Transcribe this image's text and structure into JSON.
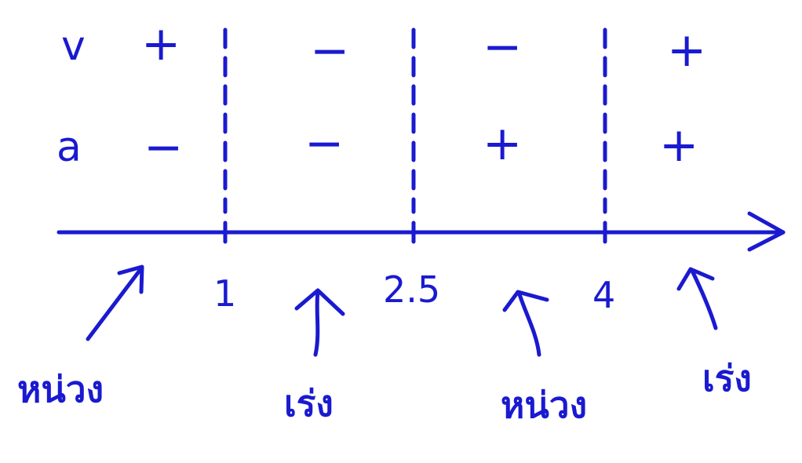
{
  "ink_color": "#1a1ad0",
  "rows": [
    {
      "label": "v",
      "signs": [
        "+",
        "−",
        "−",
        "+"
      ]
    },
    {
      "label": "a",
      "signs": [
        "−",
        "−",
        "+",
        "+"
      ]
    }
  ],
  "axis": {
    "ticks": [
      "1",
      "2.5",
      "4"
    ]
  },
  "interval_notes": [
    "หน่วง",
    "เร่ง",
    "หน่วง",
    "เร่ง"
  ],
  "icons": {
    "arrow": "up-arrow-icon",
    "axis": "axis-arrow-icon"
  }
}
